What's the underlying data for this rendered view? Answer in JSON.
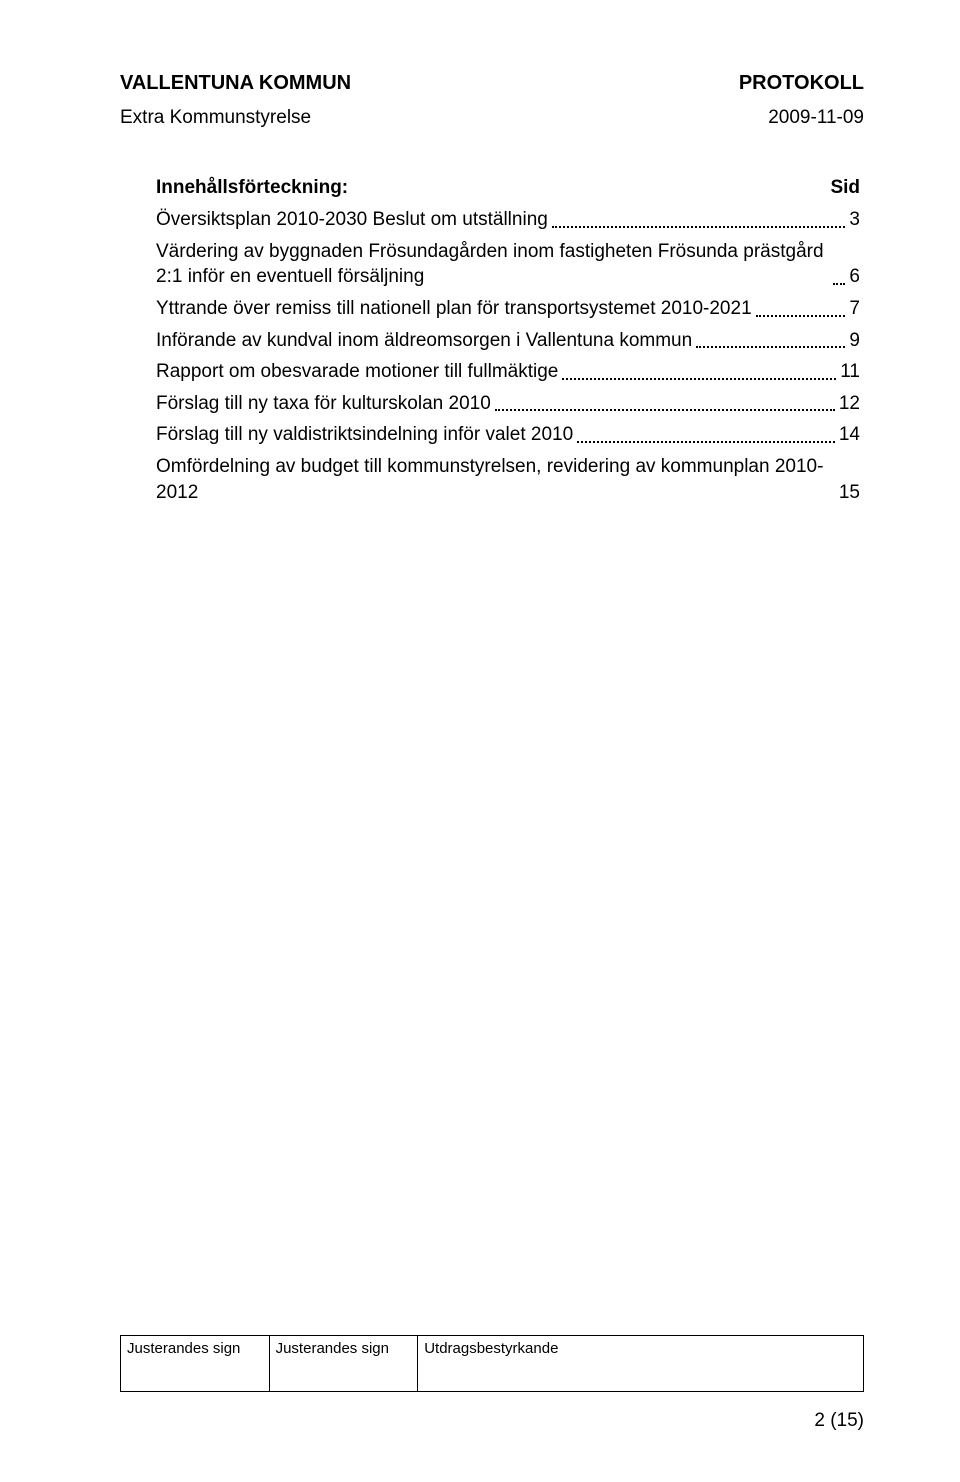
{
  "header": {
    "org": "VALLENTUNA KOMMUN",
    "doc_type": "PROTOKOLL"
  },
  "subheader": {
    "body": "Extra Kommunstyrelse",
    "date": "2009-11-09"
  },
  "toc": {
    "title": "Innehållsförteckning:",
    "sid_label": "Sid",
    "entries": [
      {
        "label": "Översiktsplan 2010-2030 Beslut om utställning",
        "page": "3"
      },
      {
        "label": "Värdering av byggnaden Frösundagården inom fastigheten Frösunda prästgård 2:1 inför en eventuell försäljning",
        "page": "6"
      },
      {
        "label": "Yttrande över remiss till nationell plan för transportsystemet 2010-2021",
        "page": "7"
      },
      {
        "label": "Införande av kundval inom äldreomsorgen i Vallentuna kommun",
        "page": "9"
      },
      {
        "label": "Rapport om obesvarade motioner till fullmäktige",
        "page": "11"
      },
      {
        "label": "Förslag till ny taxa för kulturskolan 2010",
        "page": "12"
      },
      {
        "label": "Förslag till ny valdistriktsindelning inför valet 2010",
        "page": "14"
      },
      {
        "label": "Omfördelning av budget till kommunstyrelsen, revidering av kommunplan 2010-2012",
        "page": "15",
        "no_dots": true
      }
    ]
  },
  "footer": {
    "col1": "Justerandes sign",
    "col2": "Justerandes sign",
    "col3": "Utdragsbestyrkande",
    "page_number": "2 (15)"
  },
  "colors": {
    "text": "#000000",
    "background": "#ffffff"
  },
  "fonts": {
    "body_family": "Arial, Helvetica, sans-serif",
    "header_size_pt": 15,
    "body_size_pt": 14
  }
}
